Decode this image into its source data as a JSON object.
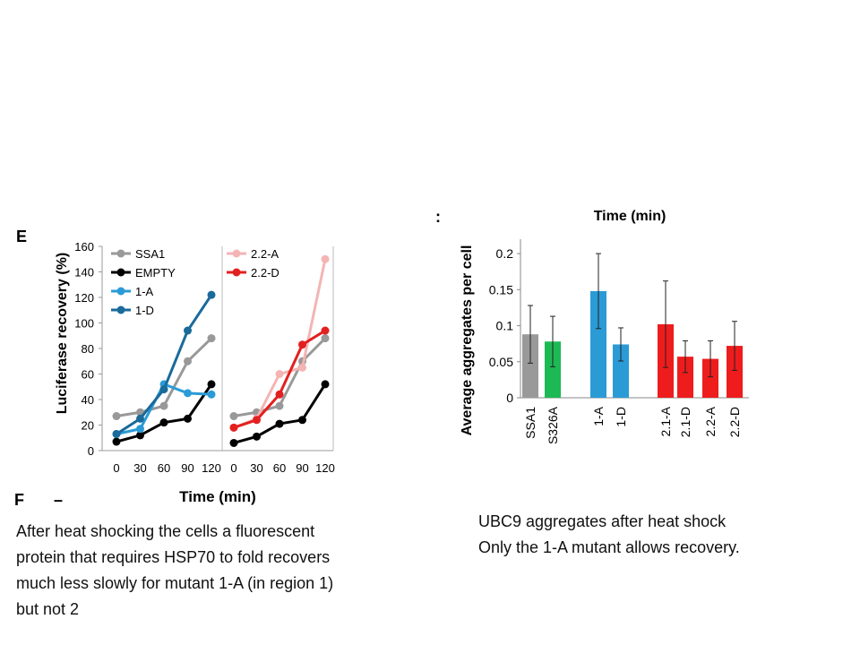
{
  "panel_letters": {
    "e": "E",
    "f": "F",
    "dash": "–",
    "colon": ":"
  },
  "captions": {
    "left": [
      "After heat shocking the cells a fluorescent",
      "protein that requires HSP70 to fold recovers",
      "much less slowly for mutant 1-A (in region 1)",
      "but not 2"
    ],
    "right": [
      "UBC9 aggregates after heat shock",
      "Only the 1-A mutant allows recovery."
    ]
  },
  "colors": {
    "SSA1": "#999999",
    "EMPTY": "#000000",
    "1-A": "#2b9bd6",
    "1-D": "#1a6a9a",
    "2.2-A": "#f4b4b4",
    "2.2-D": "#e32020",
    "S326A": "#1db954",
    "red": "#ee1c1c"
  },
  "chart_data": [
    {
      "type": "line",
      "title": "",
      "xlabel": "Time (min)",
      "ylabel": "Luciferase recovery (%)",
      "ylim": [
        0,
        160
      ],
      "yticks": [
        "0",
        "20",
        "40",
        "60",
        "80",
        "100",
        "120",
        "140",
        "160"
      ],
      "xticks": [
        "0",
        "30",
        "60",
        "90",
        "120"
      ],
      "x": [
        0,
        30,
        60,
        90,
        120
      ],
      "series": [
        {
          "name": "SSA1",
          "values": [
            27,
            30,
            35,
            70,
            88
          ]
        },
        {
          "name": "EMPTY",
          "values": [
            7,
            12,
            22,
            25,
            52
          ]
        },
        {
          "name": "1-A",
          "values": [
            13,
            17,
            52,
            45,
            44
          ]
        },
        {
          "name": "1-D",
          "values": [
            13,
            25,
            48,
            94,
            122
          ]
        }
      ]
    },
    {
      "type": "line",
      "title": "",
      "xlabel": "",
      "ylabel": "",
      "ylim": [
        0,
        160
      ],
      "xticks": [
        "0",
        "30",
        "60",
        "90",
        "120"
      ],
      "x": [
        0,
        30,
        60,
        90,
        120
      ],
      "series": [
        {
          "name": "2.2-A",
          "values": [
            18,
            25,
            60,
            65,
            150
          ]
        },
        {
          "name": "2.2-D",
          "values": [
            18,
            24,
            44,
            83,
            94
          ]
        },
        {
          "name": "",
          "values": [
            27,
            30,
            35,
            70,
            88
          ]
        },
        {
          "name": "",
          "values": [
            6,
            11,
            21,
            24,
            52
          ]
        }
      ]
    },
    {
      "type": "bar",
      "title": "Time (min)",
      "xlabel": "",
      "ylabel": "Average aggregates per cell",
      "ylim": [
        0,
        0.22
      ],
      "yticks": [
        "0",
        "0.05",
        "0.1",
        "0.15",
        "0.2"
      ],
      "categories": [
        "SSA1",
        "S326A",
        "1-A",
        "1-D",
        "2.1-A",
        "2.1-D",
        "2.2-A",
        "2.2-D"
      ],
      "values": [
        0.088,
        0.078,
        0.148,
        0.074,
        0.102,
        0.057,
        0.054,
        0.072
      ],
      "error": [
        0.04,
        0.035,
        0.052,
        0.023,
        0.06,
        0.022,
        0.025,
        0.034
      ]
    }
  ]
}
